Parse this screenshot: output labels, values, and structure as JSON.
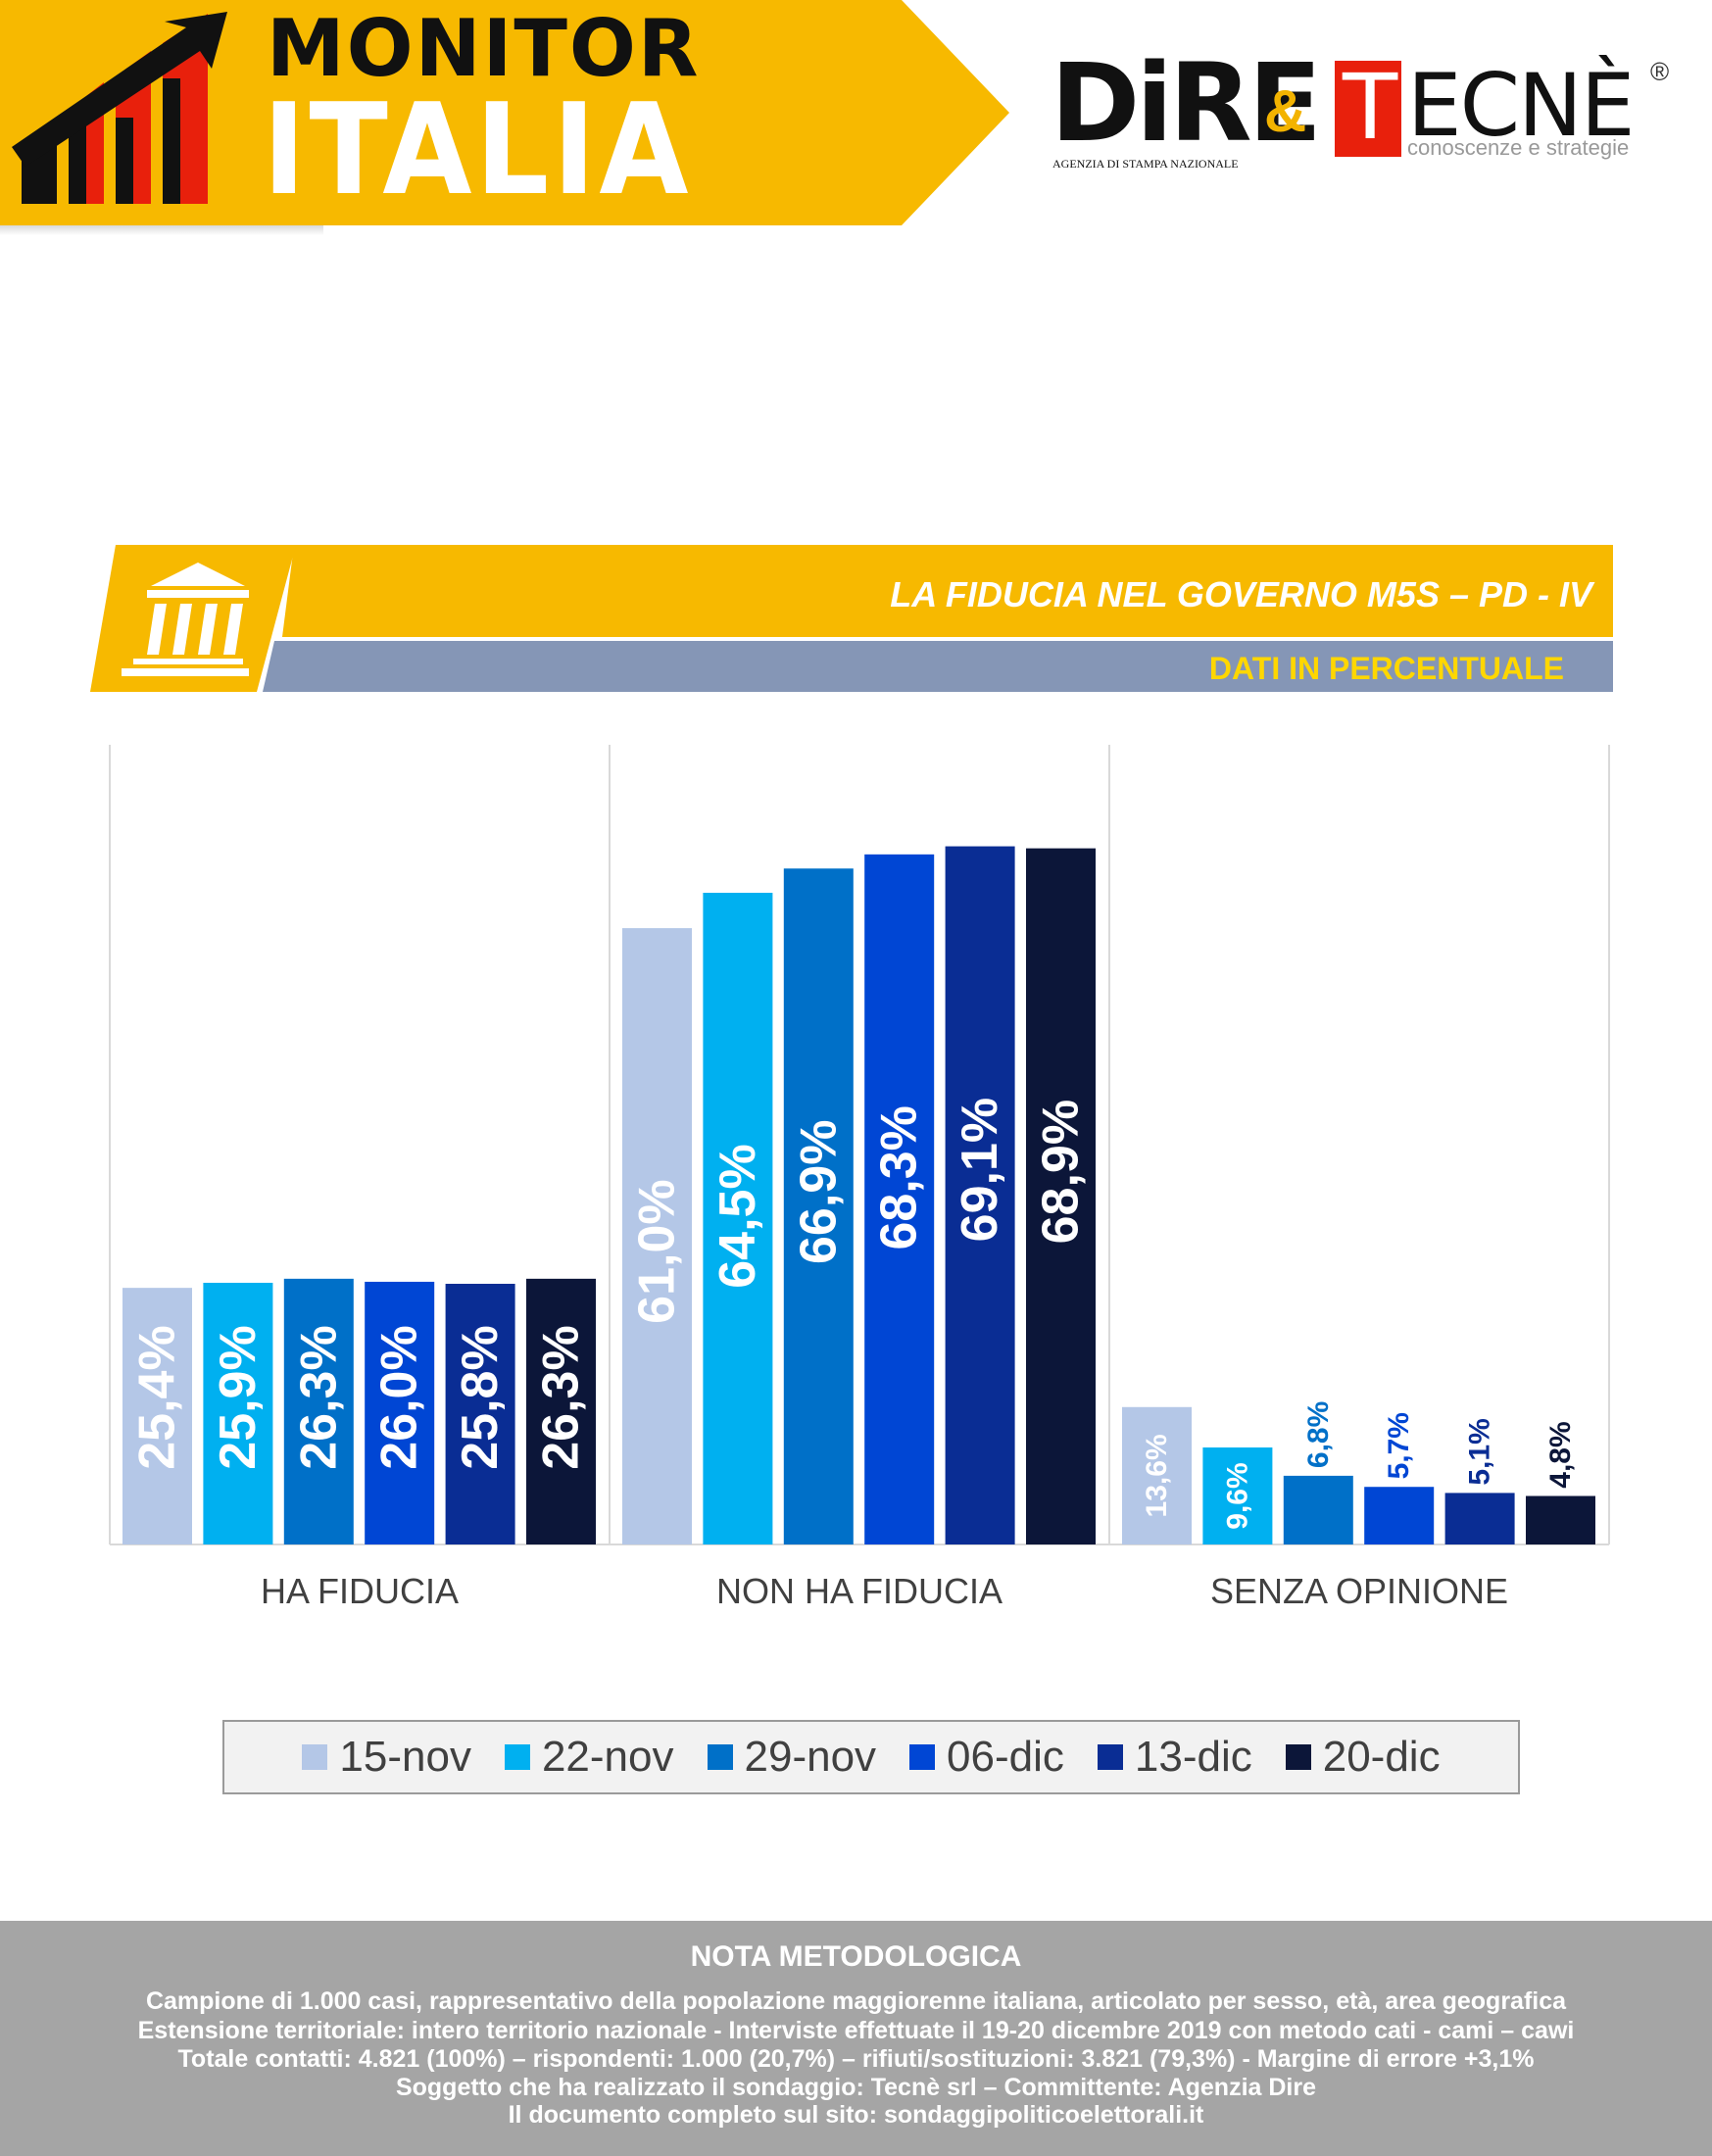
{
  "header": {
    "monitor": "MONITOR",
    "italia": "ITALIA",
    "dire_word": "DiRE",
    "dire_sub": "AGENZIA DI STAMPA NAZIONALE",
    "ampersand": "&",
    "tecne_first": "T",
    "tecne_rest": "ECNÈ",
    "tecne_reg": "®",
    "tecne_sub": "conoscenze e strategie",
    "colors": {
      "yellow": "#f7b900",
      "red": "#e8200c",
      "black": "#111111"
    }
  },
  "title_banner": {
    "title": "LA FIDUCIA NEL GOVERNO M5S – PD - IV",
    "subtitle": "DATI IN PERCENTUALE",
    "icon": "government-building-icon",
    "colors": {
      "bar": "#f7b900",
      "strip": "#8596b6",
      "subtitle_text": "#ffd700"
    }
  },
  "chart_data": {
    "type": "bar",
    "title": "LA FIDUCIA NEL GOVERNO M5S – PD - IV",
    "subtitle": "DATI IN PERCENTUALE",
    "categories": [
      "HA FIDUCIA",
      "NON HA FIDUCIA",
      "SENZA OPINIONE"
    ],
    "series": [
      {
        "name": "15-nov",
        "color": "#b4c7e7",
        "values": [
          25.4,
          61.0,
          13.6
        ],
        "labels": [
          "25,4%",
          "61,0%",
          "13,6%"
        ]
      },
      {
        "name": "22-nov",
        "color": "#00b0f0",
        "values": [
          25.9,
          64.5,
          9.6
        ],
        "labels": [
          "25,9%",
          "64,5%",
          "9,6%"
        ]
      },
      {
        "name": "29-nov",
        "color": "#0070c8",
        "values": [
          26.3,
          66.9,
          6.8
        ],
        "labels": [
          "26,3%",
          "66,9%",
          "6,8%"
        ]
      },
      {
        "name": "06-dic",
        "color": "#0046d4",
        "values": [
          26.0,
          68.3,
          5.7
        ],
        "labels": [
          "26,0%",
          "68,3%",
          "5,7%"
        ]
      },
      {
        "name": "13-dic",
        "color": "#0a2d94",
        "values": [
          25.8,
          69.1,
          5.1
        ],
        "labels": [
          "25,8%",
          "69,1%",
          "5,1%"
        ]
      },
      {
        "name": "20-dic",
        "color": "#0c1639",
        "values": [
          26.3,
          68.9,
          4.8
        ],
        "labels": [
          "26,3%",
          "68,9%",
          "4,8%"
        ]
      }
    ],
    "ylim": [
      0,
      80
    ],
    "grid": false,
    "legend_position": "bottom"
  },
  "footer": {
    "title": "NOTA METODOLOGICA",
    "lines": [
      "Campione di 1.000 casi, rappresentativo della popolazione maggiorenne italiana, articolato per sesso, età, area geografica",
      "Estensione territoriale: intero territorio nazionale  - Interviste effettuate il 19-20 dicembre 2019 con metodo cati - cami – cawi",
      "Totale contatti: 4.821 (100%) – rispondenti: 1.000 (20,7%) – rifiuti/sostituzioni: 3.821 (79,3%) - Margine di errore +3,1%",
      "Soggetto che ha realizzato il sondaggio: Tecnè srl – Committente: Agenzia Dire",
      "Il documento completo sul sito: sondaggipoliticoelettorali.it"
    ]
  }
}
